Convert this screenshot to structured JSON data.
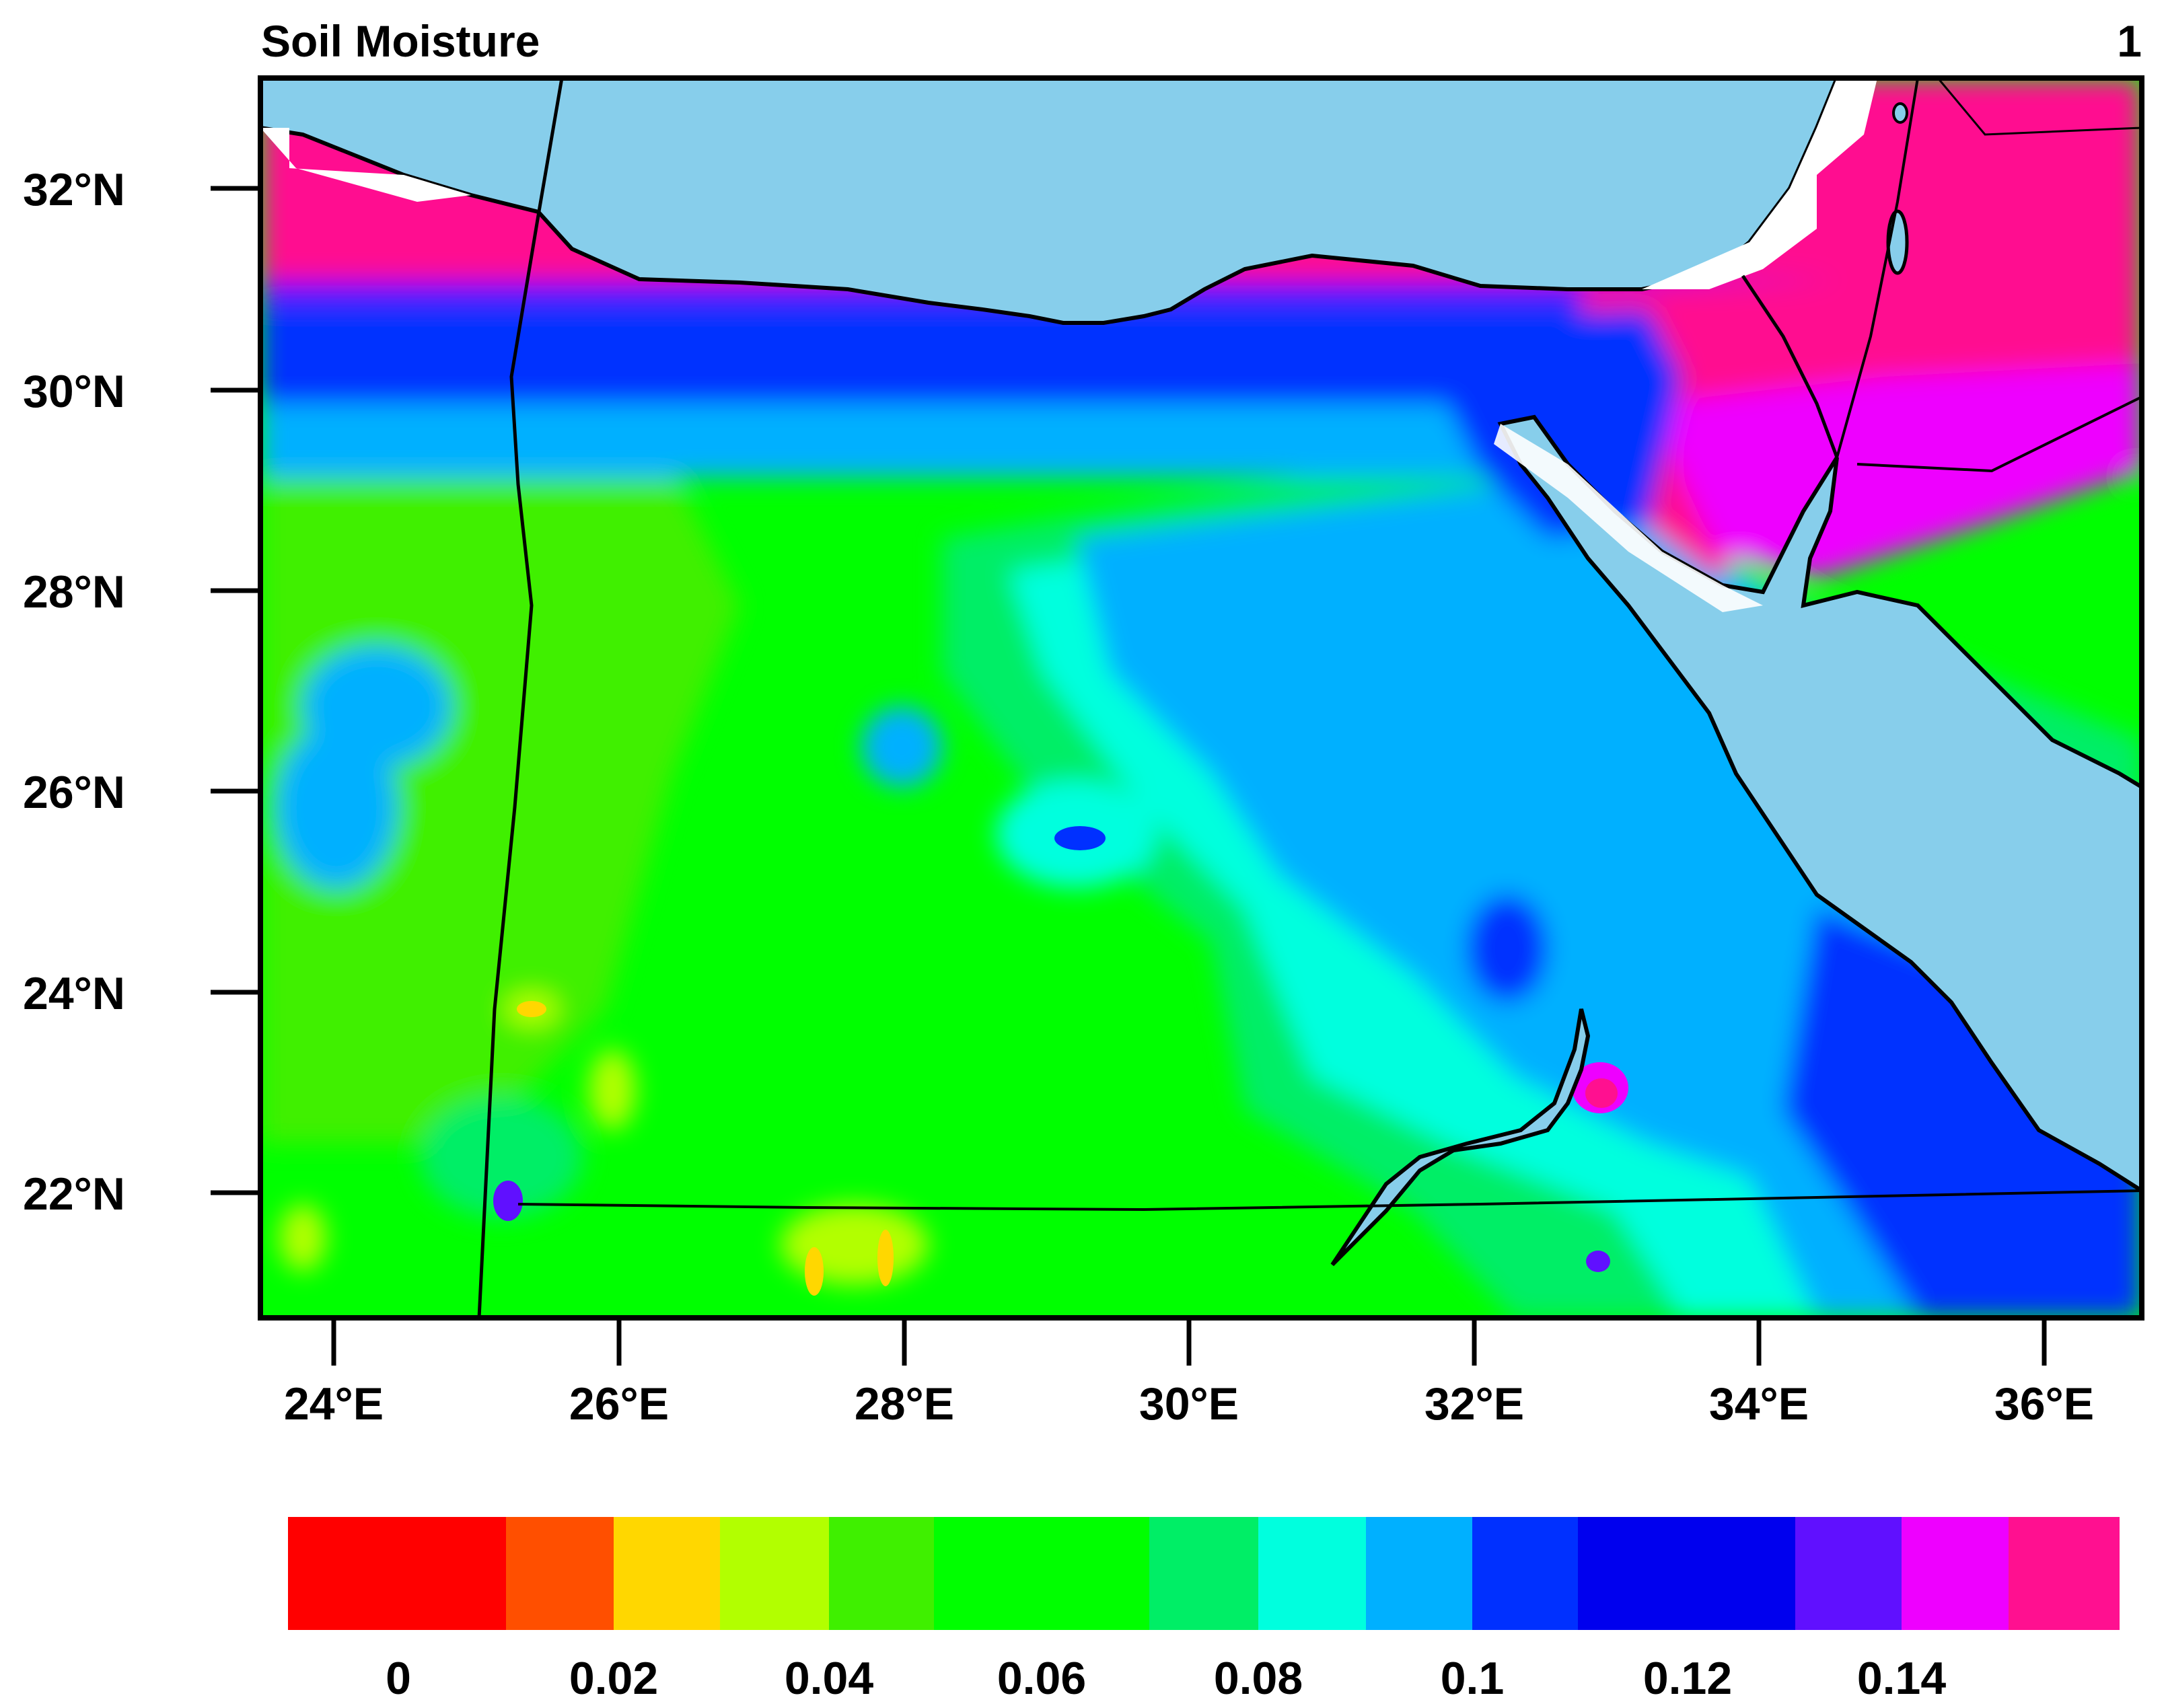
{
  "title": "Soil Moisture",
  "panel_number": "1",
  "map": {
    "lat_labels": [
      "32°N",
      "30°N",
      "28°N",
      "26°N",
      "24°N",
      "22°N"
    ],
    "lon_labels": [
      "24°E",
      "26°E",
      "28°E",
      "30°E",
      "32°E",
      "34°E",
      "36°E"
    ],
    "extent": {
      "lon": [
        23.5,
        36.7
      ],
      "lat": [
        20.8,
        33.1
      ]
    },
    "sea_color": "#87ceeb",
    "regions": [
      {
        "name": "mediterranean-sea",
        "type": "water"
      },
      {
        "name": "red-sea",
        "type": "water"
      },
      {
        "name": "gulf-of-suez",
        "type": "water"
      },
      {
        "name": "lake-nasser",
        "type": "water"
      },
      {
        "name": "coastal-north",
        "value_class": ">0.15"
      },
      {
        "name": "sinai-levant",
        "value_class": ">0.15"
      },
      {
        "name": "western-desert",
        "value_class": "0.05-0.07"
      },
      {
        "name": "eastern-desert",
        "value_class": "0.09-0.11"
      }
    ]
  },
  "colorbar": {
    "colors": [
      "#ff0000",
      "#ff4f00",
      "#ffd700",
      "#b2ff00",
      "#3ff000",
      "#00ff00",
      "#00ee66",
      "#00ffde",
      "#00b0ff",
      "#0030ff",
      "#0000ee",
      "#6010ff",
      "#ee00ff",
      "#ff1090"
    ],
    "labels": [
      "0",
      "0.02",
      "0.04",
      "0.06",
      "0.08",
      "0.1",
      "0.12",
      "0.14"
    ]
  }
}
